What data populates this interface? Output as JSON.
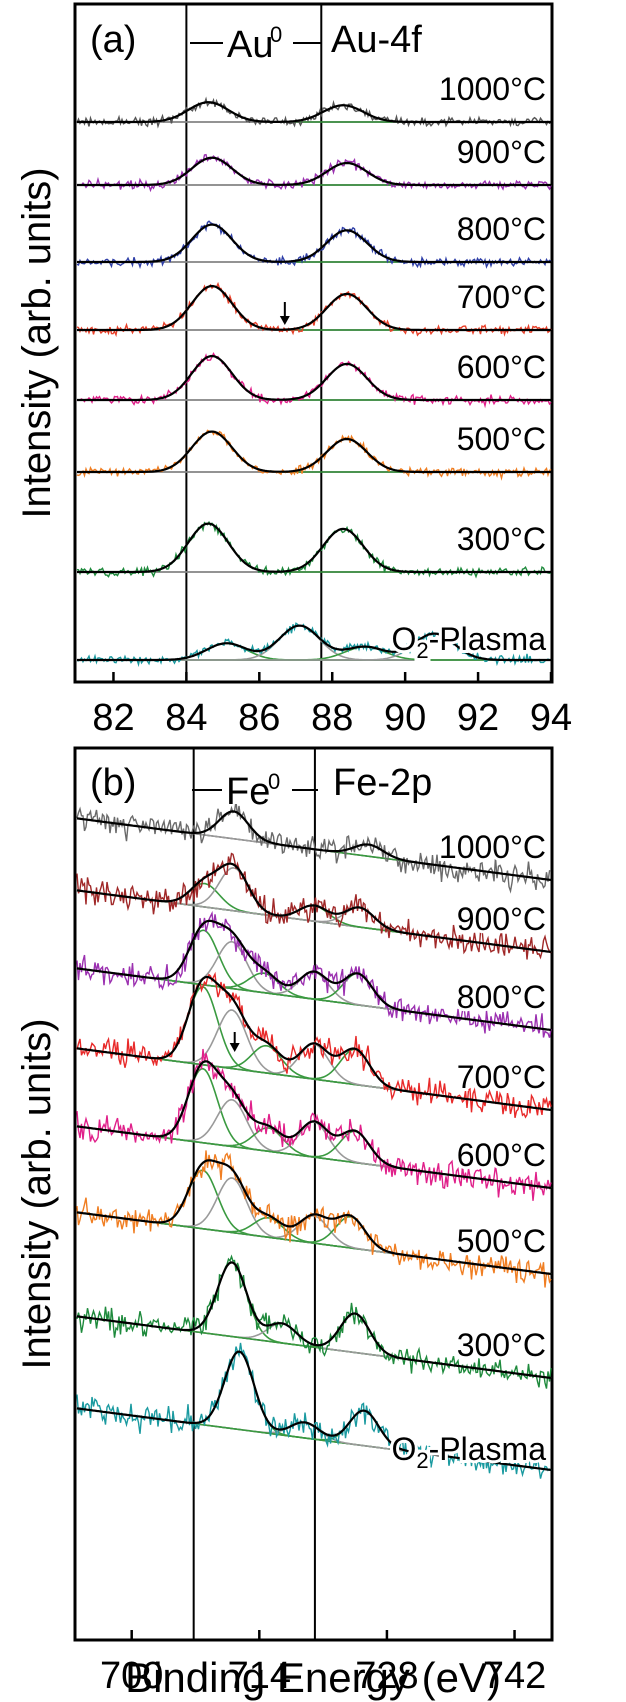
{
  "figure": {
    "xlabel": "Binding Energy (eV)",
    "ylabel": "Intensity (arb. units)"
  },
  "chart_data": [
    {
      "type": "line",
      "panel_label": "(a)",
      "region_label": "Au-4f",
      "bracket_label": "Au",
      "bracket_superscript": "0",
      "xlim": [
        81,
        94
      ],
      "xticks": [
        "82",
        "84",
        "86",
        "88",
        "90",
        "92",
        "94"
      ],
      "xtick_values": [
        82,
        84,
        86,
        88,
        90,
        92,
        94
      ],
      "reference_lines": [
        84.0,
        87.7
      ],
      "arrow_at": 86.7,
      "grid": false,
      "series": [
        {
          "name": "1000°C",
          "color": "#555555",
          "peaks": [
            [
              84.6,
              0.45
            ],
            [
              88.3,
              0.38
            ]
          ]
        },
        {
          "name": "900°C",
          "color": "#9b30b0",
          "peaks": [
            [
              84.7,
              0.62
            ],
            [
              88.4,
              0.5
            ]
          ]
        },
        {
          "name": "800°C",
          "color": "#3040a8",
          "peaks": [
            [
              84.7,
              0.85
            ],
            [
              88.4,
              0.72
            ]
          ]
        },
        {
          "name": "700°C",
          "color": "#e8402a",
          "peaks": [
            [
              84.7,
              1.0
            ],
            [
              88.4,
              0.82
            ]
          ]
        },
        {
          "name": "600°C",
          "color": "#e0208a",
          "peaks": [
            [
              84.7,
              1.0
            ],
            [
              88.4,
              0.82
            ]
          ]
        },
        {
          "name": "500°C",
          "color": "#f07e22",
          "peaks": [
            [
              84.7,
              0.92
            ],
            [
              88.4,
              0.75
            ]
          ]
        },
        {
          "name": "300°C",
          "color": "#1e8a3c",
          "peaks": [
            [
              84.6,
              1.1
            ],
            [
              88.3,
              0.98
            ]
          ]
        },
        {
          "name": "O2-Plasma",
          "color": "#1a9aa0",
          "peaks": [
            [
              85.1,
              0.38
            ],
            [
              87.1,
              0.78
            ],
            [
              88.9,
              0.3
            ],
            [
              90.8,
              0.6
            ]
          ]
        }
      ]
    },
    {
      "type": "line",
      "panel_label": "(b)",
      "region_label": "Fe-2p",
      "bracket_label": "Fe",
      "bracket_superscript": "0",
      "xlim": [
        694,
        746
      ],
      "xticks": [
        "700",
        "714",
        "728",
        "742"
      ],
      "xtick_values": [
        700,
        714,
        728,
        742
      ],
      "reference_lines": [
        706.8,
        720.1
      ],
      "arrow_at": 711.3,
      "grid": false,
      "series": [
        {
          "name": "1000°C",
          "color": "#6a6a6a",
          "peaks": [
            [
              711.2,
              0.35
            ],
            [
              726.0,
              0.15
            ]
          ]
        },
        {
          "name": "900°C",
          "color": "#a02828",
          "peaks": [
            [
              708.0,
              0.3
            ],
            [
              711.2,
              0.55
            ],
            [
              720.0,
              0.2
            ],
            [
              725.0,
              0.25
            ]
          ]
        },
        {
          "name": "800°C",
          "color": "#9b30b0",
          "peaks": [
            [
              707.9,
              0.7
            ],
            [
              711.0,
              0.6
            ],
            [
              714.5,
              0.25
            ],
            [
              720.0,
              0.35
            ],
            [
              724.8,
              0.4
            ]
          ]
        },
        {
          "name": "700°C",
          "color": "#e82a2a",
          "peaks": [
            [
              707.8,
              1.0
            ],
            [
              711.0,
              0.75
            ],
            [
              714.8,
              0.35
            ],
            [
              720.0,
              0.45
            ],
            [
              724.5,
              0.45
            ]
          ]
        },
        {
          "name": "600°C",
          "color": "#e0208a",
          "peaks": [
            [
              707.8,
              0.95
            ],
            [
              711.0,
              0.6
            ],
            [
              715.0,
              0.3
            ],
            [
              720.0,
              0.45
            ],
            [
              724.5,
              0.4
            ]
          ]
        },
        {
          "name": "500°C",
          "color": "#f07e22",
          "peaks": [
            [
              707.8,
              0.75
            ],
            [
              711.0,
              0.7
            ],
            [
              715.0,
              0.25
            ],
            [
              720.0,
              0.35
            ],
            [
              724.0,
              0.4
            ]
          ]
        },
        {
          "name": "300°C",
          "color": "#1e8a3c",
          "peaks": [
            [
              711.0,
              0.95
            ],
            [
              716.5,
              0.25
            ],
            [
              724.5,
              0.5
            ]
          ]
        },
        {
          "name": "O2-Plasma",
          "color": "#1a9aa0",
          "peaks": [
            [
              711.8,
              1.0
            ],
            [
              719.0,
              0.2
            ],
            [
              725.5,
              0.45
            ]
          ]
        }
      ]
    }
  ]
}
